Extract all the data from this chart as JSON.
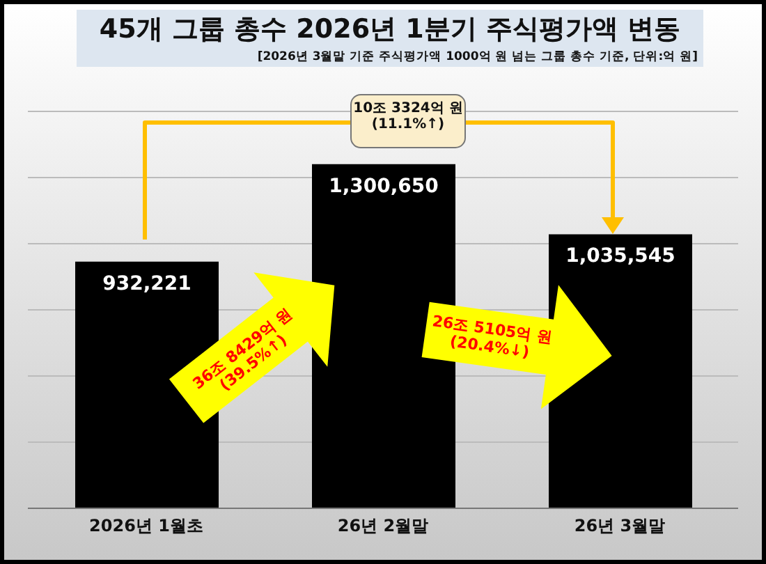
{
  "chart_data": {
    "type": "bar",
    "title": "45개 그룹 총수 2026년 1분기 주식평가액 변동",
    "subtitle": "[2026년 3월말 기준 주식평가액 1000억 원 넘는 그룹 총수 기준, 단위:억 원]",
    "categories": [
      "2026년 1월초",
      "26년 2월말",
      "26년 3월말"
    ],
    "values": [
      932221,
      1300650,
      1035545
    ],
    "value_labels": [
      "932,221",
      "1,300,650",
      "1,035,545"
    ],
    "color": "#000000",
    "ylim": [
      0,
      1500000
    ],
    "yticks": [
      {
        "value": 0,
        "label": null
      },
      {
        "value": 250000,
        "label": null
      },
      {
        "value": 500000,
        "label": null
      },
      {
        "value": 750000,
        "label": null
      },
      {
        "value": 1000000,
        "label": null
      },
      {
        "value": 1250000,
        "label": null
      },
      {
        "value": 1500000,
        "label": null
      }
    ],
    "tick_labels": "x",
    "grid": "y",
    "annotations": [
      "10조 3324억 원\n(11.1%↑)",
      "36조 8429억 원\n(39.5%↑)",
      "26조 5105억 원\n(20.4%↓)"
    ]
  }
}
